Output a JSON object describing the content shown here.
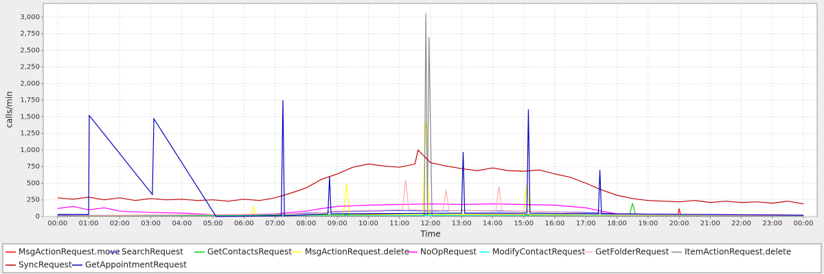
{
  "chart_data": {
    "type": "line",
    "y_label": "calls/min",
    "x_label": "Time",
    "xlim": [
      -0.46,
      24.44
    ],
    "ylim": [
      0,
      3206
    ],
    "xticks": [
      {
        "value": 0,
        "label": "00:00"
      },
      {
        "value": 1,
        "label": "01:00"
      },
      {
        "value": 2,
        "label": "02:00"
      },
      {
        "value": 3,
        "label": "03:00"
      },
      {
        "value": 4,
        "label": "04:00"
      },
      {
        "value": 5,
        "label": "05:00"
      },
      {
        "value": 6,
        "label": "06:00"
      },
      {
        "value": 7,
        "label": "07:00"
      },
      {
        "value": 8,
        "label": "08:00"
      },
      {
        "value": 9,
        "label": "09:00"
      },
      {
        "value": 10,
        "label": "10:00"
      },
      {
        "value": 11,
        "label": "11:00"
      },
      {
        "value": 12,
        "label": "12:00"
      },
      {
        "value": 13,
        "label": "13:00"
      },
      {
        "value": 14,
        "label": "14:00"
      },
      {
        "value": 15,
        "label": "15:00"
      },
      {
        "value": 16,
        "label": "16:00"
      },
      {
        "value": 17,
        "label": "17:00"
      },
      {
        "value": 18,
        "label": "18:00"
      },
      {
        "value": 19,
        "label": "19:00"
      },
      {
        "value": 20,
        "label": "20:00"
      },
      {
        "value": 21,
        "label": "21:00"
      },
      {
        "value": 22,
        "label": "22:00"
      },
      {
        "value": 23,
        "label": "23:00"
      },
      {
        "value": 24,
        "label": "00:00"
      }
    ],
    "yticks": [
      0,
      250,
      500,
      750,
      {
        "value": 1000,
        "label": "1,000"
      },
      {
        "value": 1250,
        "label": "1,250"
      },
      {
        "value": 1500,
        "label": "1,500"
      },
      {
        "value": 1750,
        "label": "1,750"
      },
      {
        "value": 2000,
        "label": "2,000"
      },
      {
        "value": 2250,
        "label": "2,250"
      },
      {
        "value": 2500,
        "label": "2,500"
      },
      {
        "value": 2750,
        "label": "2,750"
      },
      {
        "value": 3000,
        "label": "3,000"
      }
    ],
    "grid": true,
    "series": [
      {
        "name": "MsgActionRequest.move",
        "color": "#ff0000",
        "x": [
          0,
          4,
          8,
          10,
          12,
          14,
          16,
          18,
          19.95,
          20,
          20.05,
          24
        ],
        "values": [
          10,
          10,
          20,
          30,
          30,
          30,
          25,
          15,
          10,
          120,
          10,
          10
        ]
      },
      {
        "name": "SearchRequest",
        "color": "#4444ff",
        "x": [
          0,
          2,
          4,
          6,
          7,
          8,
          9,
          10,
          11,
          12,
          13,
          14,
          15,
          16,
          17,
          18,
          20,
          22,
          24
        ],
        "values": [
          20,
          15,
          10,
          15,
          30,
          50,
          70,
          80,
          90,
          80,
          90,
          85,
          80,
          70,
          60,
          40,
          30,
          25,
          20
        ]
      },
      {
        "name": "GetContactsRequest",
        "color": "#00cc00",
        "x": [
          0,
          6,
          9,
          12,
          15,
          18.4,
          18.5,
          18.6,
          24
        ],
        "values": [
          10,
          15,
          25,
          30,
          25,
          15,
          200,
          15,
          10
        ]
      },
      {
        "name": "MsgActionRequest.delete",
        "color": "#ffff00",
        "x": [
          0,
          6.2,
          6.3,
          6.4,
          9.2,
          9.3,
          9.4,
          11.75,
          11.85,
          11.95,
          15.0,
          15.1,
          15.2,
          24
        ],
        "values": [
          5,
          5,
          150,
          5,
          20,
          500,
          20,
          30,
          1430,
          30,
          20,
          500,
          20,
          5
        ]
      },
      {
        "name": "NoOpRequest",
        "color": "#ff00ff",
        "x": [
          0,
          0.5,
          1,
          1.5,
          2,
          3,
          4,
          5,
          6,
          7,
          8,
          8.5,
          9,
          10,
          11,
          12,
          13,
          14,
          15,
          16,
          17,
          17.5,
          18,
          20,
          22,
          24
        ],
        "values": [
          120,
          150,
          100,
          130,
          80,
          60,
          50,
          30,
          30,
          40,
          80,
          120,
          150,
          170,
          180,
          190,
          180,
          190,
          180,
          170,
          130,
          80,
          40,
          30,
          25,
          20
        ]
      },
      {
        "name": "ModifyContactRequest",
        "color": "#00ffff",
        "x": [
          0,
          8,
          12,
          16,
          24
        ],
        "values": [
          5,
          10,
          15,
          10,
          5
        ]
      },
      {
        "name": "GetFolderRequest",
        "color": "#ffaaaa",
        "x": [
          0,
          8,
          9,
          11.1,
          11.2,
          11.3,
          12.4,
          12.5,
          12.6,
          14.1,
          14.2,
          14.3,
          16,
          18,
          24
        ],
        "values": [
          10,
          40,
          80,
          100,
          550,
          100,
          90,
          400,
          90,
          90,
          450,
          90,
          70,
          30,
          10
        ]
      },
      {
        "name": "ItemActionRequest.delete",
        "color": "#888888",
        "x": [
          0,
          11.8,
          11.85,
          11.9,
          11.95,
          12.05,
          24
        ],
        "values": [
          5,
          5,
          3060,
          50,
          2700,
          5,
          5
        ]
      },
      {
        "name": "SyncRequest",
        "color": "#c00000",
        "x": [
          0,
          0.5,
          1,
          1.5,
          2,
          2.5,
          3,
          3.5,
          4,
          4.5,
          5,
          5.5,
          6,
          6.5,
          7,
          7.5,
          8,
          8.5,
          9,
          9.5,
          10,
          10.5,
          11,
          11.5,
          11.6,
          12,
          12.5,
          13,
          13.5,
          14,
          14.5,
          15,
          15.5,
          16,
          16.5,
          17,
          17.5,
          18,
          18.5,
          19,
          19.5,
          20,
          20.5,
          21,
          21.5,
          22,
          22.5,
          23,
          23.5,
          24
        ],
        "values": [
          280,
          260,
          290,
          250,
          280,
          240,
          270,
          250,
          260,
          240,
          250,
          230,
          260,
          240,
          280,
          350,
          430,
          560,
          640,
          740,
          790,
          760,
          740,
          790,
          1000,
          810,
          760,
          720,
          690,
          730,
          690,
          680,
          700,
          640,
          590,
          500,
          400,
          320,
          270,
          240,
          230,
          220,
          240,
          210,
          230,
          210,
          220,
          200,
          230,
          190
        ]
      },
      {
        "name": "GetAppointmentRequest",
        "color": "#0000bb",
        "x": [
          0,
          1,
          1.02,
          3.05,
          3.1,
          5.1,
          7.2,
          7.25,
          7.3,
          8.7,
          8.75,
          8.8,
          13.0,
          13.05,
          13.1,
          15.1,
          15.15,
          15.2,
          17.4,
          17.45,
          17.5,
          24
        ],
        "values": [
          30,
          30,
          1520,
          330,
          1470,
          0,
          10,
          1750,
          10,
          40,
          600,
          40,
          50,
          970,
          50,
          50,
          1610,
          50,
          40,
          700,
          40,
          20
        ]
      }
    ]
  }
}
